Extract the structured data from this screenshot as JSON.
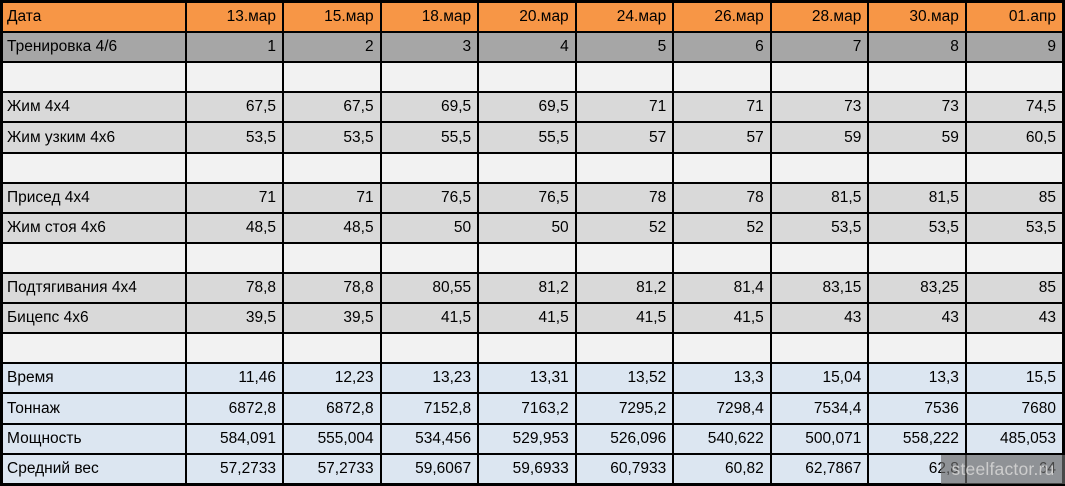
{
  "colors": {
    "header_orange": "#F79646",
    "session_gray": "#A6A6A6",
    "exercise_gray": "#D9D9D9",
    "empty_row": "#F2F2F2",
    "summary_blue": "#DCE6F1",
    "grid_border": "#000000",
    "watermark_bg": "#6A6A6A",
    "watermark_text": "#CDCDCD"
  },
  "table": {
    "corner_label": "Дата",
    "columns": [
      "13.мар",
      "15.мар",
      "18.мар",
      "20.мар",
      "24.мар",
      "26.мар",
      "28.мар",
      "30.мар",
      "01.апр"
    ],
    "rows": [
      {
        "label": "Тренировка 4/6",
        "variant": "session",
        "values": [
          "1",
          "2",
          "3",
          "4",
          "5",
          "6",
          "7",
          "8",
          "9"
        ]
      },
      {
        "label": "",
        "variant": "empty",
        "values": [
          "",
          "",
          "",
          "",
          "",
          "",
          "",
          "",
          ""
        ]
      },
      {
        "label": "Жим 4х4",
        "variant": "exercise",
        "values": [
          "67,5",
          "67,5",
          "69,5",
          "69,5",
          "71",
          "71",
          "73",
          "73",
          "74,5"
        ]
      },
      {
        "label": "Жим узким 4х6",
        "variant": "exercise",
        "values": [
          "53,5",
          "53,5",
          "55,5",
          "55,5",
          "57",
          "57",
          "59",
          "59",
          "60,5"
        ]
      },
      {
        "label": "",
        "variant": "empty",
        "values": [
          "",
          "",
          "",
          "",
          "",
          "",
          "",
          "",
          ""
        ]
      },
      {
        "label": "Присед 4х4",
        "variant": "exercise",
        "values": [
          "71",
          "71",
          "76,5",
          "76,5",
          "78",
          "78",
          "81,5",
          "81,5",
          "85"
        ]
      },
      {
        "label": "Жим стоя 4х6",
        "variant": "exercise",
        "values": [
          "48,5",
          "48,5",
          "50",
          "50",
          "52",
          "52",
          "53,5",
          "53,5",
          "53,5"
        ]
      },
      {
        "label": "",
        "variant": "empty",
        "values": [
          "",
          "",
          "",
          "",
          "",
          "",
          "",
          "",
          ""
        ]
      },
      {
        "label": "Подтягивания 4х4",
        "variant": "exercise",
        "values": [
          "78,8",
          "78,8",
          "80,55",
          "81,2",
          "81,2",
          "81,4",
          "83,15",
          "83,25",
          "85"
        ]
      },
      {
        "label": "Бицепс 4х6",
        "variant": "exercise",
        "values": [
          "39,5",
          "39,5",
          "41,5",
          "41,5",
          "41,5",
          "41,5",
          "43",
          "43",
          "43"
        ]
      },
      {
        "label": "",
        "variant": "empty",
        "values": [
          "",
          "",
          "",
          "",
          "",
          "",
          "",
          "",
          ""
        ]
      },
      {
        "label": "Время",
        "variant": "summary",
        "values": [
          "11,46",
          "12,23",
          "13,23",
          "13,31",
          "13,52",
          "13,3",
          "15,04",
          "13,3",
          "15,5"
        ]
      },
      {
        "label": "Тоннаж",
        "variant": "summary",
        "values": [
          "6872,8",
          "6872,8",
          "7152,8",
          "7163,2",
          "7295,2",
          "7298,4",
          "7534,4",
          "7536",
          "7680"
        ]
      },
      {
        "label": "Мощность",
        "variant": "summary",
        "values": [
          "584,091",
          "555,004",
          "534,456",
          "529,953",
          "526,096",
          "540,622",
          "500,071",
          "558,222",
          "485,053"
        ]
      },
      {
        "label": "Средний вес",
        "variant": "summary",
        "values": [
          "57,2733",
          "57,2733",
          "59,6067",
          "59,6933",
          "60,7933",
          "60,82",
          "62,7867",
          "62,8",
          "64"
        ]
      }
    ]
  },
  "watermark": {
    "text": "steelfactor.ru"
  }
}
